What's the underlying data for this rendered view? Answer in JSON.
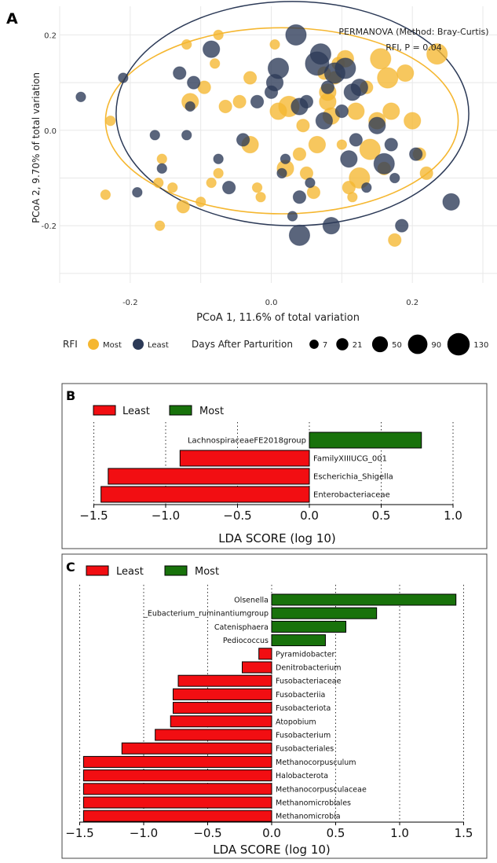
{
  "chart_data": [
    {
      "panel": "A",
      "type": "scatter",
      "xlabel": "PCoA 1, 11.6% of total variation",
      "ylabel": "PCoA 2, 9.70% of total variation",
      "annotation": [
        "PERMANOVA (Method: Bray-Curtis)",
        "RFI, P = 0.04"
      ],
      "xlim": [
        -0.3,
        0.32
      ],
      "ylim": [
        -0.32,
        0.26
      ],
      "xticks": [
        -0.2,
        0.0,
        0.2
      ],
      "yticks": [
        -0.2,
        0.0,
        0.2
      ],
      "grid": true,
      "legend": {
        "position": "bottom",
        "color_title": "RFI",
        "size_title": "Days After Parturition",
        "size_values": [
          7,
          21,
          50,
          90,
          130
        ]
      },
      "colors": {
        "Most": "#f5b731",
        "Least": "#2c3a57"
      },
      "ellipses": [
        {
          "group": "Most",
          "cx": 0.015,
          "cy": 0.02,
          "rx": 0.25,
          "ry": 0.195
        },
        {
          "group": "Least",
          "cx": 0.03,
          "cy": 0.035,
          "rx": 0.25,
          "ry": 0.235
        }
      ],
      "series": [
        {
          "name": "Most",
          "points": [
            [
              -0.235,
              -0.135,
              7
            ],
            [
              -0.228,
              0.02,
              7
            ],
            [
              -0.16,
              -0.11,
              7
            ],
            [
              -0.158,
              -0.2,
              7
            ],
            [
              -0.155,
              -0.06,
              7
            ],
            [
              -0.14,
              -0.12,
              7
            ],
            [
              -0.125,
              -0.16,
              21
            ],
            [
              -0.12,
              0.18,
              7
            ],
            [
              -0.115,
              0.06,
              50
            ],
            [
              -0.1,
              -0.15,
              7
            ],
            [
              -0.095,
              0.09,
              21
            ],
            [
              -0.085,
              -0.11,
              7
            ],
            [
              -0.08,
              0.14,
              7
            ],
            [
              -0.075,
              -0.09,
              7
            ],
            [
              -0.075,
              0.2,
              7
            ],
            [
              -0.065,
              0.05,
              21
            ],
            [
              -0.045,
              0.06,
              21
            ],
            [
              -0.03,
              -0.03,
              50
            ],
            [
              -0.03,
              0.11,
              21
            ],
            [
              -0.02,
              -0.12,
              7
            ],
            [
              -0.015,
              -0.14,
              7
            ],
            [
              0.005,
              0.18,
              7
            ],
            [
              0.01,
              0.04,
              50
            ],
            [
              0.02,
              -0.08,
              50
            ],
            [
              0.025,
              0.05,
              90
            ],
            [
              0.04,
              -0.05,
              21
            ],
            [
              0.045,
              0.01,
              21
            ],
            [
              0.05,
              -0.09,
              21
            ],
            [
              0.065,
              -0.03,
              50
            ],
            [
              0.075,
              0.12,
              21
            ],
            [
              0.08,
              0.06,
              50
            ],
            [
              0.085,
              0.03,
              50
            ],
            [
              0.09,
              0.11,
              21
            ],
            [
              0.095,
              0.14,
              21
            ],
            [
              0.1,
              -0.03,
              7
            ],
            [
              0.105,
              0.15,
              50
            ],
            [
              0.11,
              -0.12,
              21
            ],
            [
              0.115,
              -0.14,
              7
            ],
            [
              0.12,
              0.04,
              50
            ],
            [
              0.125,
              -0.1,
              90
            ],
            [
              0.135,
              0.09,
              21
            ],
            [
              0.14,
              -0.04,
              90
            ],
            [
              0.15,
              0.02,
              50
            ],
            [
              0.155,
              0.15,
              90
            ],
            [
              0.16,
              -0.08,
              21
            ],
            [
              0.165,
              0.11,
              90
            ],
            [
              0.17,
              0.04,
              50
            ],
            [
              0.175,
              -0.23,
              21
            ],
            [
              0.19,
              0.12,
              50
            ],
            [
              0.2,
              0.02,
              50
            ],
            [
              0.21,
              -0.05,
              21
            ],
            [
              0.22,
              -0.09,
              21
            ],
            [
              0.235,
              0.16,
              90
            ],
            [
              0.08,
              0.08,
              50
            ],
            [
              0.06,
              -0.13,
              21
            ]
          ]
        },
        {
          "name": "Least",
          "points": [
            [
              -0.27,
              0.07,
              7
            ],
            [
              -0.21,
              0.11,
              7
            ],
            [
              -0.19,
              -0.13,
              7
            ],
            [
              -0.165,
              -0.01,
              7
            ],
            [
              -0.155,
              -0.08,
              7
            ],
            [
              -0.13,
              0.12,
              21
            ],
            [
              -0.12,
              -0.01,
              7
            ],
            [
              -0.115,
              0.05,
              7
            ],
            [
              -0.11,
              0.1,
              21
            ],
            [
              -0.085,
              0.17,
              50
            ],
            [
              -0.075,
              -0.06,
              7
            ],
            [
              -0.06,
              -0.12,
              21
            ],
            [
              -0.04,
              -0.02,
              21
            ],
            [
              -0.02,
              0.06,
              21
            ],
            [
              0.0,
              0.08,
              21
            ],
            [
              0.005,
              0.1,
              50
            ],
            [
              0.01,
              0.13,
              90
            ],
            [
              0.015,
              -0.09,
              7
            ],
            [
              0.02,
              -0.06,
              7
            ],
            [
              0.03,
              -0.18,
              7
            ],
            [
              0.035,
              0.2,
              90
            ],
            [
              0.04,
              0.05,
              50
            ],
            [
              0.04,
              -0.22,
              90
            ],
            [
              0.05,
              0.06,
              21
            ],
            [
              0.055,
              -0.11,
              7
            ],
            [
              0.065,
              0.14,
              130
            ],
            [
              0.07,
              0.16,
              90
            ],
            [
              0.075,
              0.02,
              50
            ],
            [
              0.08,
              0.09,
              21
            ],
            [
              0.085,
              -0.2,
              50
            ],
            [
              0.09,
              0.12,
              90
            ],
            [
              0.1,
              0.04,
              21
            ],
            [
              0.105,
              0.13,
              90
            ],
            [
              0.11,
              -0.06,
              50
            ],
            [
              0.115,
              0.08,
              50
            ],
            [
              0.12,
              -0.02,
              21
            ],
            [
              0.125,
              0.09,
              50
            ],
            [
              0.135,
              -0.12,
              7
            ],
            [
              0.15,
              0.01,
              50
            ],
            [
              0.16,
              -0.07,
              90
            ],
            [
              0.175,
              -0.1,
              7
            ],
            [
              0.185,
              -0.2,
              21
            ],
            [
              0.205,
              -0.05,
              21
            ],
            [
              0.255,
              -0.15,
              50
            ],
            [
              0.17,
              -0.03,
              21
            ],
            [
              0.04,
              -0.14,
              21
            ]
          ]
        }
      ]
    },
    {
      "panel": "B",
      "type": "bar",
      "orientation": "horizontal",
      "xlabel": "LDA SCORE (log 10)",
      "xlim": [
        -1.6,
        1.1
      ],
      "xticks": [
        -1.5,
        -1.0,
        -0.5,
        0.0,
        0.5,
        1.0
      ],
      "xtick_labels": [
        "−1.5",
        "−1.0",
        "−0.5",
        "0.0",
        "0.5",
        "1.0"
      ],
      "legend": {
        "position": "top-left",
        "entries": [
          "Least",
          "Most"
        ]
      },
      "colors": {
        "Least": "#f20e12",
        "Most": "#18720b"
      },
      "categories": [
        "LachnospiraceaeFE2018group",
        "FamilyXIIIUCG_001",
        "Escherichia_Shigella",
        "Enterobacteriaceae"
      ],
      "values": [
        0.78,
        -0.9,
        -1.4,
        -1.45
      ],
      "groups": [
        "Most",
        "Least",
        "Least",
        "Least"
      ]
    },
    {
      "panel": "C",
      "type": "bar",
      "orientation": "horizontal",
      "xlabel": "LDA SCORE (log 10)",
      "xlim": [
        -1.6,
        1.7
      ],
      "xticks": [
        -1.5,
        -1.0,
        -0.5,
        0.0,
        0.5,
        1.0,
        1.5
      ],
      "xtick_labels": [
        "−1.5",
        "−1.0",
        "−0.5",
        "0.0",
        "0.5",
        "1.0",
        "1.5"
      ],
      "legend": {
        "position": "top-left",
        "entries": [
          "Least",
          "Most"
        ]
      },
      "colors": {
        "Least": "#f20e12",
        "Most": "#18720b"
      },
      "categories": [
        "Olsenella",
        "_Eubacterium_ruminantiumgroup",
        "Catenisphaera",
        "Pediococcus",
        "Pyramidobacter",
        "Denitrobacterium",
        "Fusobacteriaceae",
        "Fusobacteriia",
        "Fusobacteriota",
        "Atopobium",
        "Fusobacterium",
        "Fusobacteriales",
        "Methanocorpusculum",
        "Halobacterota",
        "Methanocorpusculaceae",
        "Methanomicrobiales",
        "Methanomicrobia"
      ],
      "values": [
        1.44,
        0.82,
        0.58,
        0.42,
        -0.1,
        -0.23,
        -0.73,
        -0.77,
        -0.77,
        -0.79,
        -0.91,
        -1.17,
        -1.47,
        -1.47,
        -1.47,
        -1.47,
        -1.47
      ],
      "groups": [
        "Most",
        "Most",
        "Most",
        "Most",
        "Least",
        "Least",
        "Least",
        "Least",
        "Least",
        "Least",
        "Least",
        "Least",
        "Least",
        "Least",
        "Least",
        "Least",
        "Least"
      ]
    }
  ]
}
